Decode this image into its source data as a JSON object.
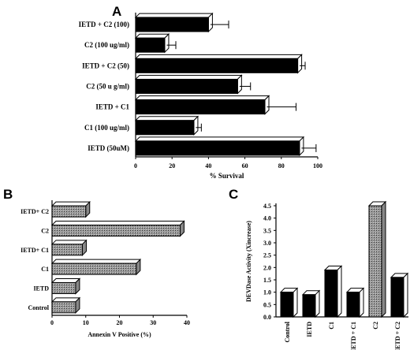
{
  "panels": {
    "a": "A",
    "b": "B",
    "c": "C"
  },
  "chart_data": [
    {
      "type": "bar",
      "orientation": "horizontal",
      "panel": "A",
      "categories": [
        "IETD + C2 (100)",
        "C2 (100 ug/ml)",
        "IETD + C2 (50)",
        "C2 (50 u g/ml)",
        "IETD + C1",
        "C1 (100 ug/ml)",
        "IETD (50uM)"
      ],
      "values": [
        40,
        16,
        89,
        56,
        71,
        32,
        90
      ],
      "errors": [
        10,
        5,
        3,
        6,
        16,
        3,
        8
      ],
      "xlabel": "% Survival",
      "xlim": [
        0,
        100
      ],
      "xticks": [
        0,
        20,
        40,
        60,
        80,
        100
      ],
      "style": "3d-black",
      "grid": false
    },
    {
      "type": "bar",
      "orientation": "horizontal",
      "panel": "B",
      "categories": [
        "IETD+ C2",
        "C2",
        "IETD+ C1",
        "C1",
        "IETD",
        "Control"
      ],
      "values": [
        10,
        38,
        9,
        25,
        7,
        7
      ],
      "xlabel": "Annexin V Positive (%)",
      "xlim": [
        0,
        40
      ],
      "xticks": [
        0,
        10,
        20,
        30,
        40
      ],
      "style": "3d-stippled",
      "grid": false
    },
    {
      "type": "bar",
      "orientation": "vertical",
      "panel": "C",
      "categories": [
        "Control",
        "IETD",
        "C1",
        "IETD + C1",
        "C2",
        "IETD + C2"
      ],
      "values": [
        1.0,
        0.9,
        1.9,
        1.0,
        4.5,
        1.6
      ],
      "ylabel": "DEVDase Activity (Xincrease)",
      "ylim": [
        0,
        4.5
      ],
      "yticks": [
        "0.0",
        "0.5",
        "1.0",
        "1.5",
        "2.0",
        "2.5",
        "3.0",
        "3.5",
        "4.0",
        "4.5"
      ],
      "style": "3d-mixed",
      "grid": false
    }
  ]
}
